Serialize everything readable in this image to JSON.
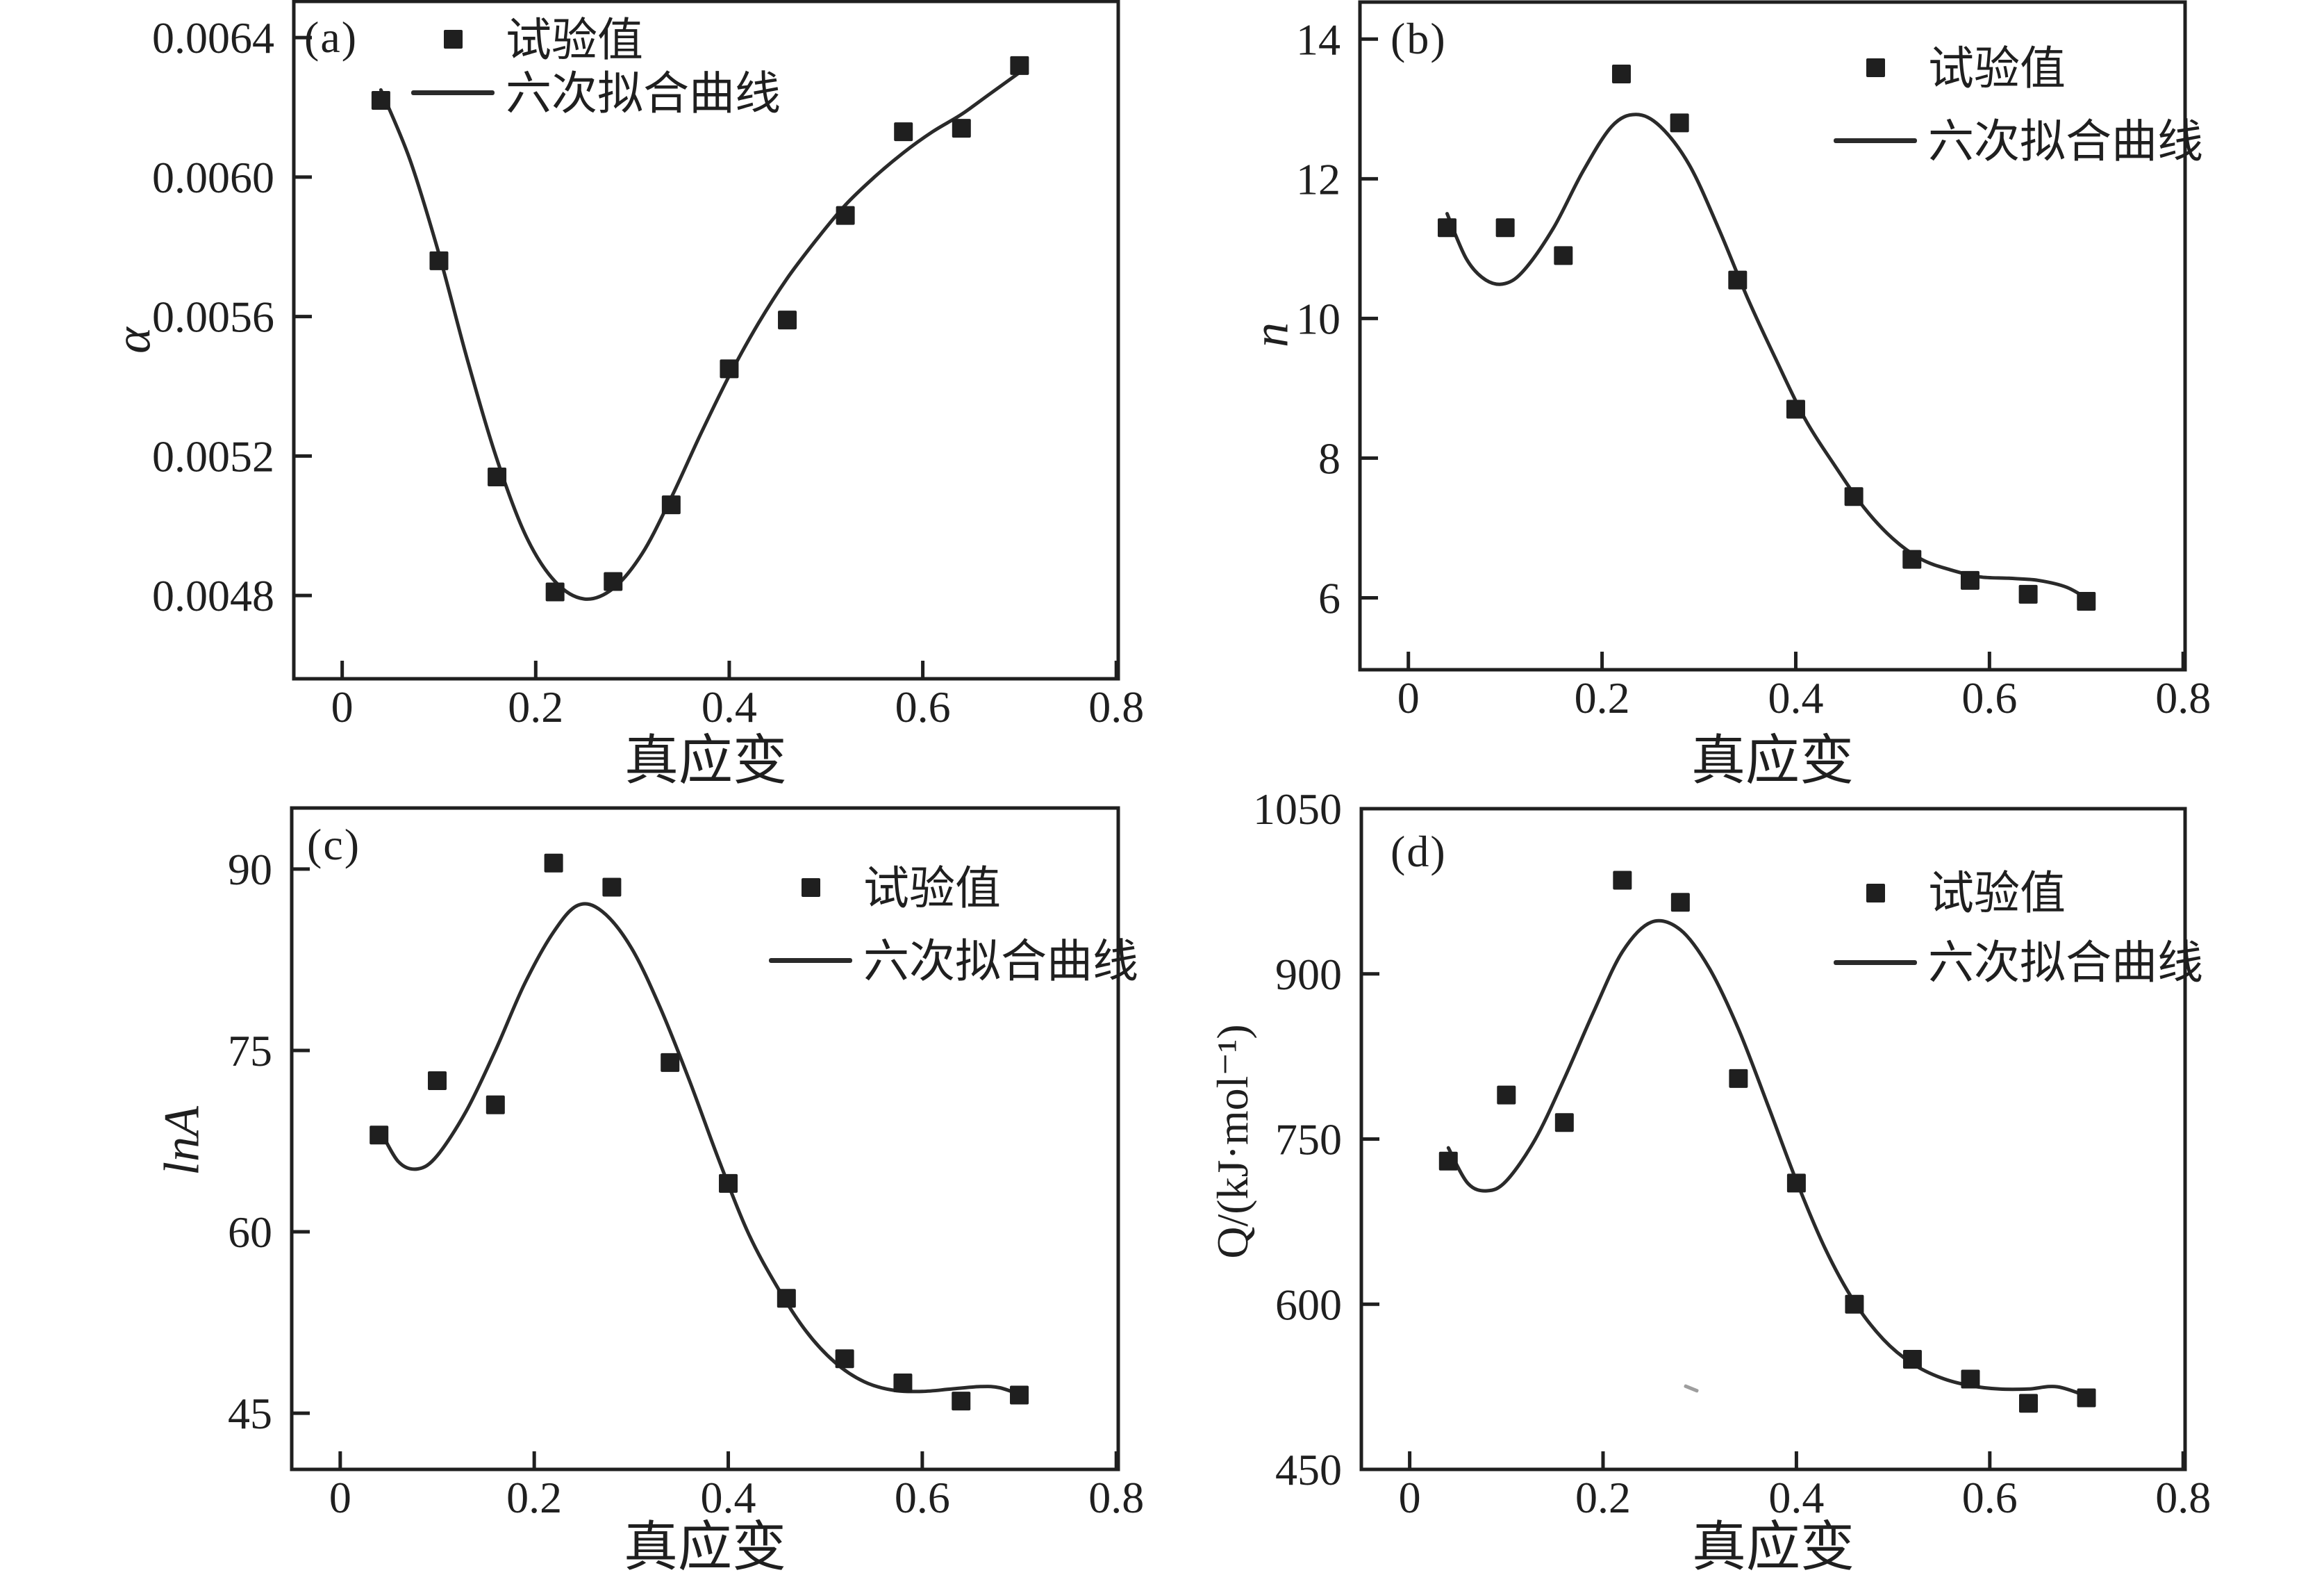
{
  "figure": {
    "background": "#ffffff",
    "ink_color": "#1f1f1f",
    "curve_color": "#2a2a2a",
    "marker_color": "#1f1f1f"
  },
  "chart_data": [
    {
      "type": "scatter",
      "panel_label": "(a)",
      "xlabel": "真应变",
      "ylabel": "α",
      "legend": [
        "试验值",
        "六次拟合曲线"
      ],
      "legend_position": "upper-left",
      "grid": false,
      "x": [
        0.04,
        0.1,
        0.16,
        0.22,
        0.28,
        0.34,
        0.4,
        0.46,
        0.52,
        0.58,
        0.64,
        0.7
      ],
      "y": [
        0.00622,
        0.00576,
        0.00514,
        0.00481,
        0.00484,
        0.00506,
        0.00545,
        0.00559,
        0.00589,
        0.00613,
        0.00614,
        0.00632
      ],
      "fit_curve": {
        "x": [
          0.04,
          0.07,
          0.1,
          0.13,
          0.16,
          0.19,
          0.22,
          0.25,
          0.28,
          0.31,
          0.34,
          0.37,
          0.4,
          0.43,
          0.46,
          0.49,
          0.52,
          0.55,
          0.58,
          0.61,
          0.64,
          0.67,
          0.705
        ],
        "y": [
          0.00625,
          0.00605,
          0.00578,
          0.00547,
          0.00519,
          0.00497,
          0.00484,
          0.00479,
          0.00482,
          0.00492,
          0.00508,
          0.00526,
          0.00543,
          0.00558,
          0.00571,
          0.00582,
          0.00592,
          0.006,
          0.00607,
          0.00613,
          0.00618,
          0.00624,
          0.00631
        ]
      },
      "xlim": [
        -0.05,
        0.802
      ],
      "ylim": [
        0.004561,
        0.006504
      ],
      "xticks": [
        0,
        0.2,
        0.4,
        0.6,
        0.8
      ],
      "xtick_labels": [
        "0",
        "0.2",
        "0.4",
        "0.6",
        "0.8"
      ],
      "yticks": [
        0.0048,
        0.0052,
        0.0056,
        0.006,
        0.0064
      ],
      "ytick_labels": [
        "0.0048",
        "0.0052",
        "0.0056",
        "0.0060",
        "0.0064"
      ]
    },
    {
      "type": "scatter",
      "panel_label": "(b)",
      "xlabel": "真应变",
      "ylabel": "n",
      "legend": [
        "试验值",
        "六次拟合曲线"
      ],
      "legend_position": "upper-right",
      "grid": false,
      "x": [
        0.04,
        0.1,
        0.16,
        0.22,
        0.28,
        0.34,
        0.4,
        0.46,
        0.52,
        0.58,
        0.64,
        0.7
      ],
      "y": [
        11.3,
        11.3,
        10.9,
        13.5,
        12.8,
        10.55,
        8.7,
        7.45,
        6.55,
        6.25,
        6.05,
        5.95
      ],
      "fit_curve": {
        "x": [
          0.04,
          0.06,
          0.08,
          0.1,
          0.12,
          0.15,
          0.18,
          0.21,
          0.235,
          0.26,
          0.29,
          0.32,
          0.35,
          0.38,
          0.41,
          0.44,
          0.47,
          0.5,
          0.53,
          0.56,
          0.59,
          0.62,
          0.65,
          0.68,
          0.705
        ],
        "y": [
          11.5,
          10.85,
          10.55,
          10.5,
          10.7,
          11.3,
          12.1,
          12.75,
          12.92,
          12.75,
          12.2,
          11.3,
          10.3,
          9.4,
          8.55,
          7.9,
          7.3,
          6.85,
          6.55,
          6.4,
          6.3,
          6.28,
          6.25,
          6.15,
          5.95
        ]
      },
      "xlim": [
        -0.05,
        0.802
      ],
      "ylim": [
        4.97,
        14.53
      ],
      "xticks": [
        0,
        0.2,
        0.4,
        0.6,
        0.8
      ],
      "xtick_labels": [
        "0",
        "0.2",
        "0.4",
        "0.6",
        "0.8"
      ],
      "yticks": [
        6,
        8,
        10,
        12,
        14
      ],
      "ytick_labels": [
        "6",
        "8",
        "10",
        "12",
        "14"
      ]
    },
    {
      "type": "scatter",
      "panel_label": "(c)",
      "xlabel": "真应变",
      "ylabel": "lnA",
      "legend": [
        "试验值",
        "六次拟合曲线"
      ],
      "legend_position": "upper-right",
      "grid": false,
      "x": [
        0.04,
        0.1,
        0.16,
        0.22,
        0.28,
        0.34,
        0.4,
        0.46,
        0.52,
        0.58,
        0.64,
        0.7
      ],
      "y": [
        68,
        72.5,
        70.5,
        90.5,
        88.5,
        74,
        64,
        54.5,
        49.5,
        47.5,
        46,
        46.5
      ],
      "fit_curve": {
        "x": [
          0.04,
          0.06,
          0.08,
          0.1,
          0.13,
          0.16,
          0.19,
          0.22,
          0.245,
          0.27,
          0.3,
          0.33,
          0.36,
          0.39,
          0.42,
          0.45,
          0.48,
          0.51,
          0.54,
          0.57,
          0.6,
          0.63,
          0.66,
          0.68,
          0.705
        ],
        "y": [
          68.6,
          65.8,
          65.2,
          66.3,
          70,
          75,
          80.5,
          84.8,
          87,
          86.5,
          83.5,
          78.5,
          72.5,
          66,
          60,
          55.5,
          51.8,
          49.2,
          47.6,
          46.9,
          46.8,
          47,
          47.2,
          47.1,
          46.4
        ]
      },
      "xlim": [
        -0.05,
        0.802
      ],
      "ylim": [
        40.35,
        95.05
      ],
      "xticks": [
        0,
        0.2,
        0.4,
        0.6,
        0.8
      ],
      "xtick_labels": [
        "0",
        "0.2",
        "0.4",
        "0.6",
        "0.8"
      ],
      "yticks": [
        45,
        60,
        75,
        90
      ],
      "ytick_labels": [
        "45",
        "60",
        "75",
        "90"
      ]
    },
    {
      "type": "scatter",
      "panel_label": "(d)",
      "xlabel": "真应变",
      "ylabel": "Q/(kJ·mol⁻¹)",
      "legend": [
        "试验值",
        "六次拟合曲线"
      ],
      "legend_position": "upper-right",
      "grid": false,
      "x": [
        0.04,
        0.1,
        0.16,
        0.22,
        0.28,
        0.34,
        0.4,
        0.46,
        0.52,
        0.58,
        0.64,
        0.7
      ],
      "y": [
        730,
        790,
        765,
        985,
        965,
        805,
        710,
        600,
        550,
        532,
        510,
        515
      ],
      "fit_curve": {
        "x": [
          0.04,
          0.06,
          0.08,
          0.1,
          0.13,
          0.16,
          0.19,
          0.22,
          0.25,
          0.28,
          0.31,
          0.34,
          0.37,
          0.4,
          0.43,
          0.46,
          0.49,
          0.52,
          0.55,
          0.58,
          0.61,
          0.64,
          0.67,
          0.705
        ],
        "y": [
          742,
          710,
          703,
          712,
          750,
          805,
          865,
          920,
          947,
          940,
          905,
          850,
          782,
          712,
          650,
          602,
          568,
          546,
          533,
          526,
          523,
          523,
          525,
          515
        ]
      },
      "xlim": [
        -0.05,
        0.802
      ],
      "ylim": [
        450,
        1050
      ],
      "xticks": [
        0,
        0.2,
        0.4,
        0.6,
        0.8
      ],
      "xtick_labels": [
        "0",
        "0.2",
        "0.4",
        "0.6",
        "0.8"
      ],
      "yticks": [
        450,
        600,
        750,
        900,
        1050
      ],
      "ytick_labels": [
        "450",
        "600",
        "750",
        "900",
        "1050"
      ]
    }
  ]
}
